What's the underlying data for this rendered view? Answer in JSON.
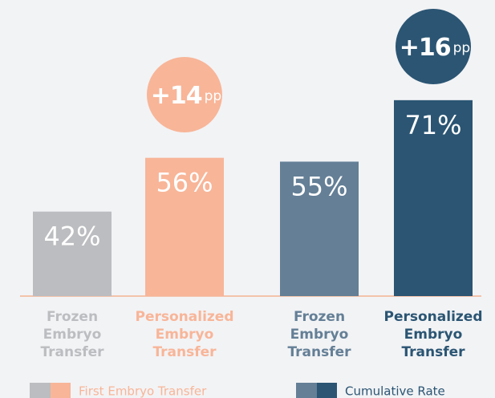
{
  "chart_data": [
    {
      "type": "bar",
      "legend": "First Embryo Transfer",
      "categories": [
        "Frozen Embryo Transfer",
        "Personalized Embryo Transfer"
      ],
      "values": [
        42,
        56
      ],
      "value_labels": [
        "42%",
        "56%"
      ],
      "colors": [
        "#bcbdc0",
        "#f8b598"
      ],
      "annotation": {
        "value": "+14",
        "unit": "pp"
      },
      "ylim": [
        20,
        100
      ]
    },
    {
      "type": "bar",
      "legend": "Cumulative Rate",
      "categories": [
        "Frozen Embryo Transfer",
        "Personalized Embryo Transfer"
      ],
      "values": [
        55,
        71
      ],
      "value_labels": [
        "55%",
        "71%"
      ],
      "colors": [
        "#647f96",
        "#2b5573"
      ],
      "annotation": {
        "value": "+16",
        "unit": "pp"
      },
      "ylim": [
        20,
        100
      ]
    }
  ]
}
